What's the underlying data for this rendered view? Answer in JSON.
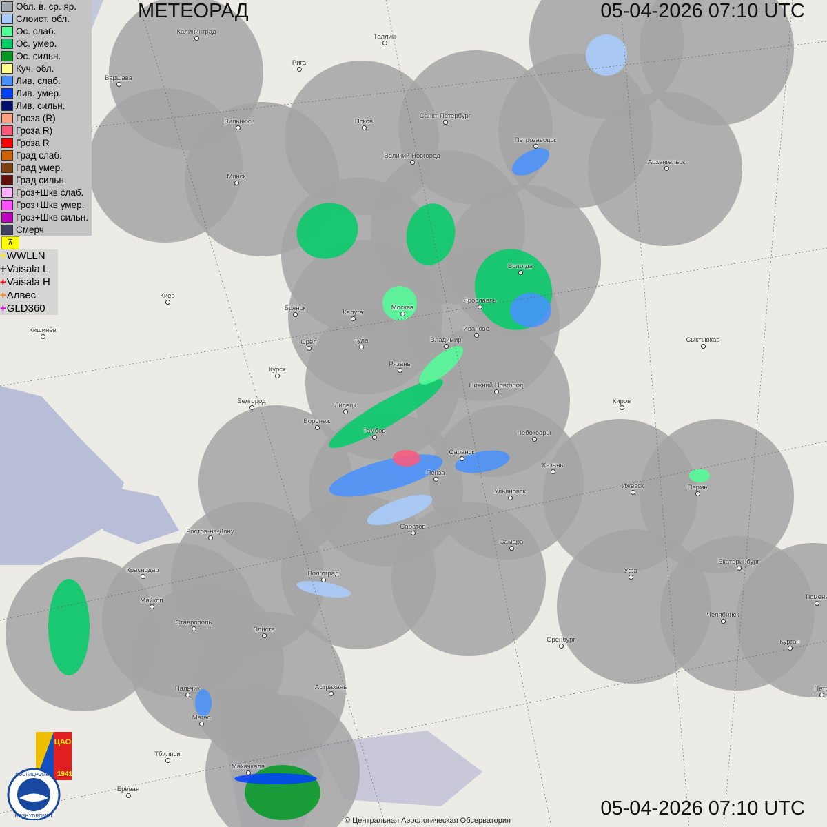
{
  "header": {
    "title": "МЕТЕОРАД",
    "timestamp_top": "05-04-2026  07:10 UTC",
    "timestamp_bottom": "05-04-2026  07:10 UTC"
  },
  "legend": [
    {
      "label": "Обл. в. ср. яр.",
      "color": "#a0a8b0"
    },
    {
      "label": "Слоист. обл.",
      "color": "#a8ccff"
    },
    {
      "label": "Ос. слаб.",
      "color": "#50ff98"
    },
    {
      "label": "Ос. умер.",
      "color": "#00cc66"
    },
    {
      "label": "Ос. сильн.",
      "color": "#009922"
    },
    {
      "label": "Куч. обл.",
      "color": "#ffff88"
    },
    {
      "label": "Лив. слаб.",
      "color": "#4890ff"
    },
    {
      "label": "Лив. умер.",
      "color": "#0040ff"
    },
    {
      "label": "Лив. сильн.",
      "color": "#001070"
    },
    {
      "label": "Гроза (R)",
      "color": "#ffa080"
    },
    {
      "label": "Гроза R)",
      "color": "#ff5878"
    },
    {
      "label": "Гроза R",
      "color": "#ff0000"
    },
    {
      "label": "Град слаб.",
      "color": "#d06000"
    },
    {
      "label": "Град умер.",
      "color": "#804010"
    },
    {
      "label": "Град сильн.",
      "color": "#601008"
    },
    {
      "label": "Гроз+Шкв слаб.",
      "color": "#ffb0ff"
    },
    {
      "label": "Гроз+Шкв умер.",
      "color": "#ff50ff"
    },
    {
      "label": "Гроз+Шкв сильн.",
      "color": "#c000c0"
    },
    {
      "label": "Смерч",
      "color": "#404060"
    }
  ],
  "lightning_legend": [
    {
      "label": "WWLLN",
      "color": "#ffee00"
    },
    {
      "label": "Vaisala L",
      "color": "#000000"
    },
    {
      "label": "Vaisala H",
      "color": "#ff0000"
    },
    {
      "label": "Алвес",
      "color": "#ff8000"
    },
    {
      "label": "GLD360",
      "color": "#d000d0"
    }
  ],
  "cities": [
    "Калининград",
    "Таллин",
    "Рига",
    "Варшава",
    "Вильнюс",
    "Псков",
    "Санкт-Петербург",
    "Петрозаводск",
    "Архангельск",
    "Великий Новгород",
    "Минск",
    "Вологда",
    "Ярославль",
    "Москва",
    "Калуга",
    "Брянск",
    "Киев",
    "Иваново",
    "Владимир",
    "Тула",
    "Орёл",
    "Кишинёв",
    "Сыктывкар",
    "Рязань",
    "Курск",
    "Нижний Новгород",
    "Киров",
    "Белгород",
    "Липецк",
    "Воронеж",
    "Тамбов",
    "Чебоксары",
    "Саранск",
    "Казань",
    "Пенза",
    "Ижевск",
    "Пермь",
    "Ульяновск",
    "Ростов-на-Дону",
    "Саратов",
    "Самара",
    "Екатеринбург",
    "Краснодар",
    "Волгоград",
    "Уфа",
    "Майкоп",
    "Тюмень",
    "Челябинск",
    "Ставрополь",
    "Элиста",
    "Оренбург",
    "Курган",
    "Астрахань",
    "Нальчик",
    "Петр",
    "Магас",
    "Тбилиси",
    "Махачкала",
    "Ереван"
  ],
  "logo": {
    "org": "РОСГИДРОМЕТ",
    "org_en": "ROSHYDROMET",
    "cao": "ЦАО",
    "year": "1941"
  },
  "footer": {
    "copyright": "© Центральная Аэрологическая Обсерватория"
  },
  "colors": {
    "radar_coverage": "#a0a0a0",
    "sea": "#b4bad6",
    "land": "#ecebe6"
  }
}
